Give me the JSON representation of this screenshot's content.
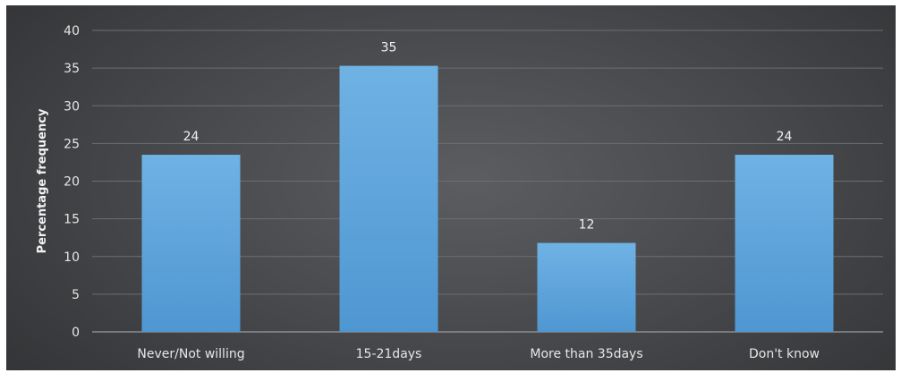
{
  "chart_data": {
    "type": "bar",
    "title": "",
    "xlabel": "",
    "ylabel": "Percentage frequency",
    "categories": [
      "Never/Not willing",
      "15-21days",
      "More than 35days",
      "Don't know"
    ],
    "values": [
      23.5,
      35.3,
      11.8,
      23.5
    ],
    "data_labels": [
      "24",
      "35",
      "12",
      "24"
    ],
    "ylim": [
      0,
      40
    ],
    "yticks": [
      0,
      5,
      10,
      15,
      20,
      25,
      30,
      35,
      40
    ],
    "grid": true,
    "legend": "none",
    "colors": {
      "bar_top": "#6fb2e4",
      "bar_bottom": "#4f97d2",
      "text": "#e6e6e6",
      "gridline": "#6c6e71"
    }
  }
}
